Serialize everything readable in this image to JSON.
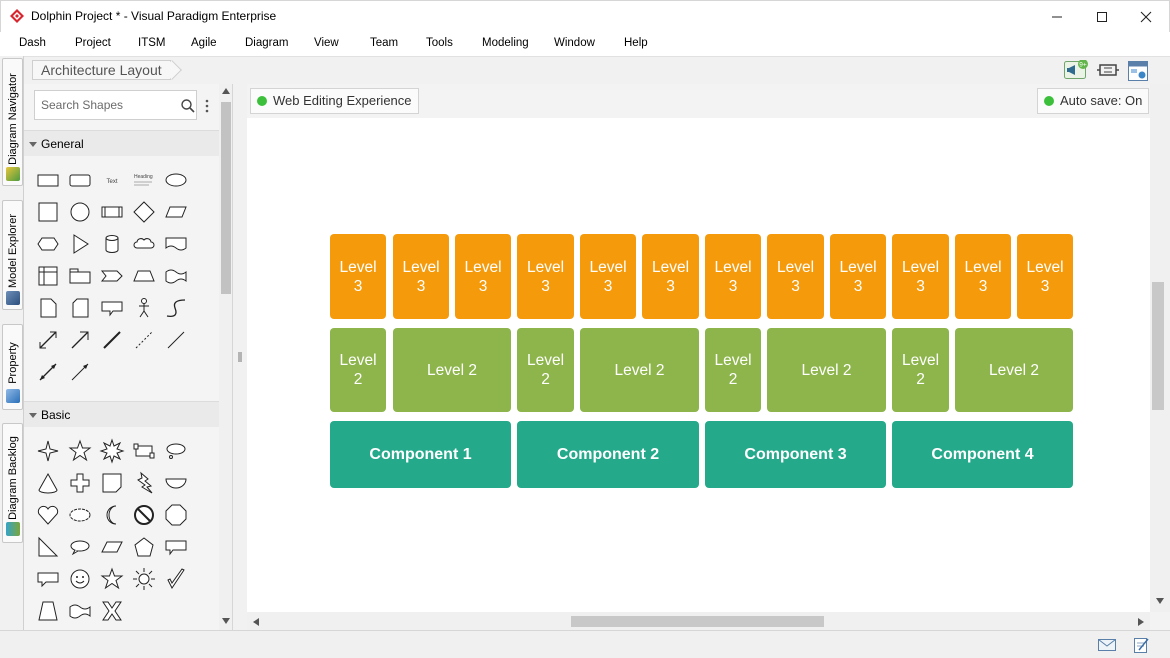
{
  "window": {
    "title": "Dolphin Project * - Visual Paradigm Enterprise",
    "controls": {
      "minimize": "—",
      "maximize": "☐",
      "close": "✕"
    }
  },
  "menu": [
    "Dash",
    "Project",
    "ITSM",
    "Agile",
    "Diagram",
    "View",
    "Team",
    "Tools",
    "Modeling",
    "Window",
    "Help"
  ],
  "toolbar": {
    "breadcrumb": "Architecture Layout",
    "notification_badge": "9+"
  },
  "vertical_tabs": [
    "Diagram Navigator",
    "Model Explorer",
    "Property",
    "Diagram Backlog"
  ],
  "shapes_panel": {
    "search_placeholder": "Search Shapes",
    "sections": [
      "General",
      "Basic"
    ],
    "general_text_shape": "Text",
    "general_heading_shape": "Heading"
  },
  "canvas": {
    "web_editing": "Web Editing Experience",
    "autosave": "Auto save: On",
    "level3_label": "Level 3",
    "level2_label": "Level 2",
    "level3_count": 12,
    "components": [
      "Component 1",
      "Component 2",
      "Component 3",
      "Component 4"
    ],
    "level2_row": [
      "Level 2",
      "Level 2",
      "Level 2",
      "Level 2",
      "Level 2",
      "Level 2",
      "Level 2",
      "Level 2"
    ],
    "level3_row": [
      "Level 3",
      "Level 3",
      "Level 3",
      "Level 3",
      "Level 3",
      "Level 3",
      "Level 3",
      "Level 3",
      "Level 3",
      "Level 3",
      "Level 3",
      "Level 3"
    ],
    "colors": {
      "level3": "#f59a0b",
      "level2": "#8db54b",
      "component": "#25a98b"
    }
  }
}
